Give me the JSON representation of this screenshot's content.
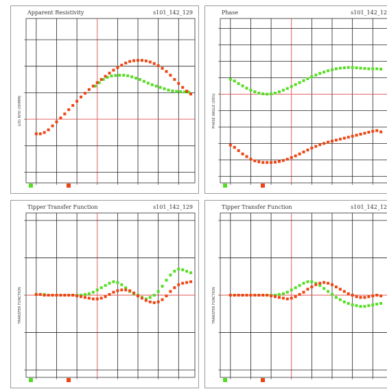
{
  "chart_data": [
    {
      "type": "scatter",
      "title": "Apparent Resistivity",
      "id_label": "s101_142_129",
      "ylabel": "LOG RHO (OHMM)",
      "xlim": [
        -3.5,
        4.8
      ],
      "ylim": [
        -2.4,
        3.8
      ],
      "y_log_scale": true,
      "grid": true,
      "ref_x": 0,
      "ref_y": 0,
      "legend": "bottom-left",
      "colors": {
        "xy": "#55dd22",
        "yx": "#ee4411"
      },
      "series": [
        {
          "color": "#55dd22",
          "x": [
            -0.1,
            0.1,
            0.3,
            0.5,
            0.7,
            0.9,
            1.1,
            1.3,
            1.5,
            1.7,
            1.9,
            2.1,
            2.3,
            2.5,
            2.7,
            2.9,
            3.1,
            3.3,
            3.5,
            3.7,
            3.9,
            4.1,
            4.3,
            4.5
          ],
          "y": [
            1.25,
            1.38,
            1.5,
            1.58,
            1.63,
            1.65,
            1.66,
            1.66,
            1.64,
            1.6,
            1.55,
            1.5,
            1.43,
            1.36,
            1.3,
            1.25,
            1.2,
            1.15,
            1.1,
            1.07,
            1.05,
            1.04,
            1.03,
            1.02
          ]
        },
        {
          "color": "#ee4411",
          "x": [
            -3.0,
            -2.8,
            -2.6,
            -2.4,
            -2.2,
            -2.0,
            -1.8,
            -1.6,
            -1.4,
            -1.2,
            -1.0,
            -0.8,
            -0.6,
            -0.4,
            -0.2,
            0.0,
            0.2,
            0.4,
            0.6,
            0.8,
            1.0,
            1.2,
            1.4,
            1.6,
            1.8,
            2.0,
            2.2,
            2.4,
            2.6,
            2.8,
            3.0,
            3.2,
            3.4,
            3.6,
            3.8,
            4.0,
            4.2,
            4.4,
            4.6
          ],
          "y": [
            -0.55,
            -0.55,
            -0.5,
            -0.4,
            -0.25,
            -0.1,
            0.05,
            0.2,
            0.36,
            0.52,
            0.68,
            0.84,
            0.98,
            1.12,
            1.25,
            1.38,
            1.5,
            1.62,
            1.74,
            1.85,
            1.95,
            2.04,
            2.12,
            2.18,
            2.21,
            2.22,
            2.22,
            2.2,
            2.16,
            2.1,
            2.02,
            1.92,
            1.8,
            1.66,
            1.5,
            1.35,
            1.2,
            1.06,
            0.95
          ]
        }
      ]
    },
    {
      "type": "scatter",
      "title": "Phase",
      "id_label": "s101_142_12",
      "ylabel": "PHASE ANGLE (DEG)",
      "xlim": [
        -3.5,
        4.8
      ],
      "ylim": [
        -270,
        230
      ],
      "grid": true,
      "ref_x": 0,
      "ref_y": 0,
      "legend": "bottom-left",
      "colors": {
        "xy": "#55dd22",
        "yx": "#ee4411"
      },
      "series": [
        {
          "color": "#55dd22",
          "x": [
            -3.0,
            -2.8,
            -2.6,
            -2.4,
            -2.2,
            -2.0,
            -1.8,
            -1.6,
            -1.4,
            -1.2,
            -1.0,
            -0.8,
            -0.6,
            -0.4,
            -0.2,
            0.0,
            0.2,
            0.4,
            0.6,
            0.8,
            1.0,
            1.2,
            1.4,
            1.6,
            1.8,
            2.0,
            2.2,
            2.4,
            2.6,
            2.8,
            3.0,
            3.2,
            3.4,
            3.6,
            3.8,
            4.0,
            4.2,
            4.4
          ],
          "y": [
            45,
            40,
            32,
            25,
            18,
            12,
            7,
            3,
            1,
            0,
            1,
            3,
            7,
            12,
            17,
            23,
            29,
            35,
            41,
            47,
            53,
            58,
            63,
            67,
            71,
            74,
            77,
            79,
            80,
            81,
            81,
            80,
            79,
            78,
            77,
            77,
            77,
            76
          ]
        },
        {
          "color": "#ee4411",
          "x": [
            -3.0,
            -2.8,
            -2.6,
            -2.4,
            -2.2,
            -2.0,
            -1.8,
            -1.6,
            -1.4,
            -1.2,
            -1.0,
            -0.8,
            -0.6,
            -0.4,
            -0.2,
            0.0,
            0.2,
            0.4,
            0.6,
            0.8,
            1.0,
            1.2,
            1.4,
            1.6,
            1.8,
            2.0,
            2.2,
            2.4,
            2.6,
            2.8,
            3.0,
            3.2,
            3.4,
            3.6,
            3.8,
            4.0,
            4.2,
            4.4
          ],
          "y": [
            -155,
            -162,
            -172,
            -182,
            -190,
            -198,
            -203,
            -206,
            -208,
            -208,
            -208,
            -207,
            -205,
            -202,
            -198,
            -193,
            -188,
            -182,
            -176,
            -170,
            -164,
            -159,
            -154,
            -150,
            -146,
            -143,
            -140,
            -137,
            -134,
            -131,
            -128,
            -125,
            -122,
            -119,
            -116,
            -113,
            -111,
            -115
          ]
        }
      ]
    },
    {
      "type": "scatter",
      "title": "Tipper Transfer Function",
      "id_label": "s101_142_129",
      "ylabel": "TRANSFER FUNCTION",
      "xlim": [
        -3.5,
        4.8
      ],
      "ylim": [
        -1.1,
        1.1
      ],
      "grid": true,
      "ref_x": 0,
      "ref_y": 0,
      "legend": "bottom-left",
      "colors": {
        "re": "#55dd22",
        "im": "#ee4411"
      },
      "series": [
        {
          "color": "#55dd22",
          "x": [
            -3.0,
            -2.8,
            -2.6,
            -2.4,
            -2.2,
            -2.0,
            -1.8,
            -1.6,
            -1.4,
            -1.2,
            -1.0,
            -0.8,
            -0.6,
            -0.4,
            -0.2,
            0.0,
            0.2,
            0.4,
            0.6,
            0.8,
            1.0,
            1.2,
            1.4,
            1.6,
            1.8,
            2.0,
            2.2,
            2.4,
            2.6,
            2.8,
            3.0,
            3.2,
            3.4,
            3.6,
            3.8,
            4.0,
            4.2,
            4.4,
            4.6
          ],
          "y": [
            0.01,
            0.01,
            0.01,
            0.0,
            0.0,
            0.0,
            0.0,
            0.0,
            0.0,
            0.0,
            0.0,
            0.0,
            0.01,
            0.02,
            0.04,
            0.07,
            0.1,
            0.13,
            0.16,
            0.18,
            0.17,
            0.14,
            0.1,
            0.05,
            0.02,
            0.0,
            -0.03,
            -0.05,
            -0.03,
            0.0,
            0.05,
            0.12,
            0.2,
            0.27,
            0.32,
            0.35,
            0.34,
            0.32,
            0.3
          ]
        },
        {
          "color": "#ee4411",
          "x": [
            -3.0,
            -2.8,
            -2.6,
            -2.4,
            -2.2,
            -2.0,
            -1.8,
            -1.6,
            -1.4,
            -1.2,
            -1.0,
            -0.8,
            -0.6,
            -0.4,
            -0.2,
            0.0,
            0.2,
            0.4,
            0.6,
            0.8,
            1.0,
            1.2,
            1.4,
            1.6,
            1.8,
            2.0,
            2.2,
            2.4,
            2.6,
            2.8,
            3.0,
            3.2,
            3.4,
            3.6,
            3.8,
            4.0,
            4.2,
            4.4,
            4.6
          ],
          "y": [
            0.01,
            0.01,
            0.0,
            0.0,
            0.0,
            0.0,
            0.0,
            0.0,
            0.0,
            0.0,
            -0.01,
            -0.02,
            -0.03,
            -0.04,
            -0.05,
            -0.05,
            -0.04,
            -0.02,
            0.01,
            0.04,
            0.06,
            0.07,
            0.07,
            0.06,
            0.03,
            -0.01,
            -0.04,
            -0.07,
            -0.09,
            -0.1,
            -0.09,
            -0.06,
            -0.01,
            0.05,
            0.1,
            0.14,
            0.16,
            0.17,
            0.18
          ]
        }
      ]
    },
    {
      "type": "scatter",
      "title": "Tipper Transfer Function",
      "id_label": "s101_142_12",
      "ylabel": "TRANSFER FUNCTION",
      "xlim": [
        -3.5,
        4.8
      ],
      "ylim": [
        -1.1,
        1.1
      ],
      "grid": true,
      "ref_x": 0,
      "ref_y": 0,
      "legend": "bottom-left",
      "colors": {
        "re": "#55dd22",
        "im": "#ee4411"
      },
      "series": [
        {
          "color": "#55dd22",
          "x": [
            -3.0,
            -2.8,
            -2.6,
            -2.4,
            -2.2,
            -2.0,
            -1.8,
            -1.6,
            -1.4,
            -1.2,
            -1.0,
            -0.8,
            -0.6,
            -0.4,
            -0.2,
            0.0,
            0.2,
            0.4,
            0.6,
            0.8,
            1.0,
            1.2,
            1.4,
            1.6,
            1.8,
            2.0,
            2.2,
            2.4,
            2.6,
            2.8,
            3.0,
            3.2,
            3.4,
            3.6,
            3.8,
            4.0,
            4.2,
            4.4
          ],
          "y": [
            0.0,
            0.0,
            0.0,
            0.0,
            0.0,
            0.0,
            0.0,
            0.0,
            0.0,
            0.0,
            0.0,
            0.0,
            0.01,
            0.02,
            0.04,
            0.07,
            0.1,
            0.13,
            0.16,
            0.18,
            0.18,
            0.16,
            0.13,
            0.09,
            0.05,
            0.01,
            -0.03,
            -0.06,
            -0.09,
            -0.11,
            -0.13,
            -0.14,
            -0.15,
            -0.15,
            -0.14,
            -0.13,
            -0.12,
            -0.11
          ]
        },
        {
          "color": "#ee4411",
          "x": [
            -3.0,
            -2.8,
            -2.6,
            -2.4,
            -2.2,
            -2.0,
            -1.8,
            -1.6,
            -1.4,
            -1.2,
            -1.0,
            -0.8,
            -0.6,
            -0.4,
            -0.2,
            0.0,
            0.2,
            0.4,
            0.6,
            0.8,
            1.0,
            1.2,
            1.4,
            1.6,
            1.8,
            2.0,
            2.2,
            2.4,
            2.6,
            2.8,
            3.0,
            3.2,
            3.4,
            3.6,
            3.8,
            4.0,
            4.2,
            4.4
          ],
          "y": [
            0.0,
            0.0,
            0.0,
            0.0,
            0.0,
            0.0,
            0.0,
            0.0,
            0.0,
            0.0,
            -0.01,
            -0.02,
            -0.03,
            -0.04,
            -0.05,
            -0.04,
            -0.02,
            0.01,
            0.04,
            0.08,
            0.11,
            0.14,
            0.16,
            0.17,
            0.16,
            0.14,
            0.11,
            0.08,
            0.05,
            0.02,
            0.0,
            -0.02,
            -0.03,
            -0.03,
            -0.02,
            -0.01,
            0.0,
            -0.01
          ]
        }
      ]
    }
  ]
}
